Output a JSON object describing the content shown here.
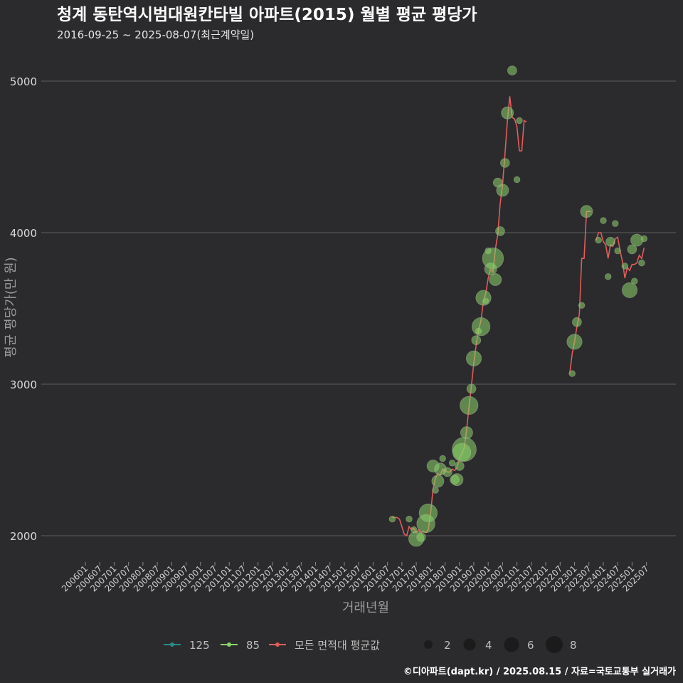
{
  "chart_data": {
    "type": "scatter",
    "title": "청계 동탄역시범대원칸타빌 아파트(2015) 월별 평균 평당가",
    "subtitle": "2016-09-25 ~ 2025-08-07(최근계약일)",
    "xlabel": "거래년월",
    "ylabel": "평균 평당가(만 원)",
    "ylim": [
      1830,
      5150
    ],
    "yticks": [
      2000,
      3000,
      4000,
      5000
    ],
    "x_tick_labels": [
      "200601",
      "200607",
      "200701",
      "200707",
      "200801",
      "200807",
      "200901",
      "200907",
      "201001",
      "201007",
      "201101",
      "201107",
      "201201",
      "201207",
      "201301",
      "201307",
      "201401",
      "201407",
      "201501",
      "201507",
      "201601",
      "201607",
      "201701",
      "201707",
      "201801",
      "201807",
      "201901",
      "201907",
      "202001",
      "202007",
      "202101",
      "202107",
      "202201",
      "202207",
      "202301",
      "202307",
      "202401",
      "202407",
      "202501",
      "202507"
    ],
    "x_range_months": [
      "2006-01",
      "2025-08"
    ],
    "grid": "horizontal",
    "legend": {
      "series": [
        {
          "name": "125",
          "color": "#2a8a8a"
        },
        {
          "name": "85",
          "color": "#8bd36a"
        },
        {
          "name": "모든 면적대 평균값",
          "color": "#e05c5c"
        }
      ],
      "size_title": "",
      "sizes": [
        2,
        4,
        6,
        8
      ],
      "placement": "bottom"
    },
    "series": [
      {
        "name": "85",
        "type": "scatter",
        "color": "#8bd36a",
        "points": [
          [
            "2016-09",
            2110,
            1
          ],
          [
            "2017-04",
            2110,
            1
          ],
          [
            "2017-06",
            2040,
            1
          ],
          [
            "2017-07",
            1980,
            4
          ],
          [
            "2017-09",
            1990,
            2
          ],
          [
            "2017-11",
            2080,
            5
          ],
          [
            "2017-12",
            2150,
            5
          ],
          [
            "2018-02",
            2460,
            3
          ],
          [
            "2018-03",
            2300,
            1
          ],
          [
            "2018-04",
            2360,
            3
          ],
          [
            "2018-05",
            2440,
            3
          ],
          [
            "2018-06",
            2510,
            1
          ],
          [
            "2018-08",
            2420,
            2
          ],
          [
            "2018-10",
            2480,
            1
          ],
          [
            "2018-11",
            2370,
            2
          ],
          [
            "2018-12",
            2370,
            3
          ],
          [
            "2019-01",
            2460,
            2
          ],
          [
            "2019-02",
            2550,
            5
          ],
          [
            "2019-03",
            2570,
            7
          ],
          [
            "2019-04",
            2680,
            3
          ],
          [
            "2019-05",
            2860,
            5
          ],
          [
            "2019-06",
            2970,
            2
          ],
          [
            "2019-07",
            3170,
            4
          ],
          [
            "2019-08",
            3290,
            2
          ],
          [
            "2019-09",
            3350,
            1
          ],
          [
            "2019-10",
            3380,
            5
          ],
          [
            "2019-11",
            3570,
            4
          ],
          [
            "2019-12",
            3550,
            1
          ],
          [
            "2020-01",
            3880,
            1
          ],
          [
            "2020-02",
            3760,
            3
          ],
          [
            "2020-03",
            3830,
            6
          ],
          [
            "2020-04",
            3690,
            3
          ],
          [
            "2020-05",
            4330,
            2
          ],
          [
            "2020-06",
            4010,
            2
          ],
          [
            "2020-07",
            4280,
            3
          ],
          [
            "2020-08",
            4460,
            2
          ],
          [
            "2020-09",
            4790,
            3
          ],
          [
            "2020-11",
            5070,
            2
          ],
          [
            "2021-01",
            4350,
            1
          ],
          [
            "2021-02",
            4740,
            1
          ],
          [
            "2022-12",
            3070,
            1
          ],
          [
            "2023-01",
            3280,
            4
          ],
          [
            "2023-02",
            3410,
            2
          ],
          [
            "2023-04",
            3520,
            1
          ],
          [
            "2023-06",
            4140,
            3
          ],
          [
            "2023-11",
            3950,
            1
          ],
          [
            "2024-01",
            4080,
            1
          ],
          [
            "2024-03",
            3710,
            1
          ],
          [
            "2024-04",
            3940,
            2
          ],
          [
            "2024-06",
            4060,
            1
          ],
          [
            "2024-07",
            3880,
            1
          ],
          [
            "2024-10",
            3780,
            1
          ],
          [
            "2024-12",
            3620,
            4
          ],
          [
            "2025-01",
            3890,
            2
          ],
          [
            "2025-02",
            3680,
            1
          ],
          [
            "2025-03",
            3950,
            3
          ],
          [
            "2025-05",
            3800,
            1
          ],
          [
            "2025-06",
            3960,
            1
          ]
        ]
      },
      {
        "name": "모든 면적대 평균값",
        "type": "line",
        "color": "#e05c5c",
        "segments": [
          [
            [
              "2016-09",
              2120
            ],
            [
              "2016-10",
              2120
            ],
            [
              "2016-11",
              2120
            ],
            [
              "2016-12",
              2110
            ],
            [
              "2017-01",
              2060
            ],
            [
              "2017-02",
              2010
            ],
            [
              "2017-03",
              2000
            ],
            [
              "2017-04",
              2060
            ],
            [
              "2017-05",
              2040
            ],
            [
              "2017-06",
              2050
            ],
            [
              "2017-07",
              2020
            ],
            [
              "2017-08",
              2040
            ],
            [
              "2017-09",
              2020
            ],
            [
              "2017-10",
              2030
            ],
            [
              "2017-11",
              2020
            ],
            [
              "2017-12",
              2040
            ],
            [
              "2018-01",
              2150
            ],
            [
              "2018-02",
              2310
            ],
            [
              "2018-03",
              2380
            ],
            [
              "2018-04",
              2410
            ],
            [
              "2018-05",
              2400
            ],
            [
              "2018-06",
              2440
            ],
            [
              "2018-07",
              2430
            ],
            [
              "2018-08",
              2420
            ],
            [
              "2018-09",
              2420
            ],
            [
              "2018-10",
              2440
            ],
            [
              "2018-11",
              2430
            ],
            [
              "2018-12",
              2450
            ],
            [
              "2019-01",
              2510
            ],
            [
              "2019-02",
              2540
            ],
            [
              "2019-03",
              2580
            ],
            [
              "2019-04",
              2700
            ],
            [
              "2019-05",
              2850
            ],
            [
              "2019-06",
              2990
            ],
            [
              "2019-07",
              3140
            ],
            [
              "2019-08",
              3260
            ],
            [
              "2019-09",
              3360
            ],
            [
              "2019-10",
              3420
            ],
            [
              "2019-11",
              3550
            ],
            [
              "2019-12",
              3600
            ],
            [
              "2020-01",
              3700
            ],
            [
              "2020-02",
              3760
            ],
            [
              "2020-03",
              3740
            ],
            [
              "2020-04",
              3890
            ],
            [
              "2020-05",
              3990
            ],
            [
              "2020-06",
              4190
            ],
            [
              "2020-07",
              4320
            ],
            [
              "2020-08",
              4520
            ],
            [
              "2020-09",
              4740
            ],
            [
              "2020-10",
              4900
            ],
            [
              "2020-11",
              4760
            ],
            [
              "2020-12",
              4750
            ],
            [
              "2021-01",
              4700
            ],
            [
              "2021-02",
              4540
            ],
            [
              "2021-03",
              4540
            ],
            [
              "2021-04",
              4740
            ],
            [
              "2021-05",
              4730
            ]
          ],
          [
            [
              "2022-11",
              3070
            ],
            [
              "2022-12",
              3200
            ],
            [
              "2023-01",
              3280
            ],
            [
              "2023-02",
              3380
            ],
            [
              "2023-03",
              3460
            ],
            [
              "2023-04",
              3830
            ],
            [
              "2023-05",
              3830
            ],
            [
              "2023-06",
              4140
            ],
            [
              "2023-07",
              4140
            ],
            [
              "2023-08",
              4140
            ]
          ],
          [
            [
              "2023-10",
              3950
            ],
            [
              "2023-11",
              4000
            ],
            [
              "2023-12",
              4000
            ],
            [
              "2024-01",
              3940
            ],
            [
              "2024-02",
              3920
            ],
            [
              "2024-03",
              3830
            ],
            [
              "2024-04",
              3920
            ],
            [
              "2024-05",
              3910
            ],
            [
              "2024-06",
              3960
            ],
            [
              "2024-07",
              3970
            ],
            [
              "2024-08",
              3880
            ],
            [
              "2024-09",
              3810
            ],
            [
              "2024-10",
              3700
            ],
            [
              "2024-11",
              3770
            ],
            [
              "2024-12",
              3750
            ],
            [
              "2025-01",
              3790
            ],
            [
              "2025-02",
              3790
            ],
            [
              "2025-03",
              3800
            ],
            [
              "2025-04",
              3850
            ],
            [
              "2025-05",
              3830
            ],
            [
              "2025-06",
              3900
            ]
          ]
        ]
      }
    ]
  },
  "footer": {
    "credit": "©디아파트(dapt.kr) / 2025.08.15 / 자료=국토교통부 실거래가"
  }
}
